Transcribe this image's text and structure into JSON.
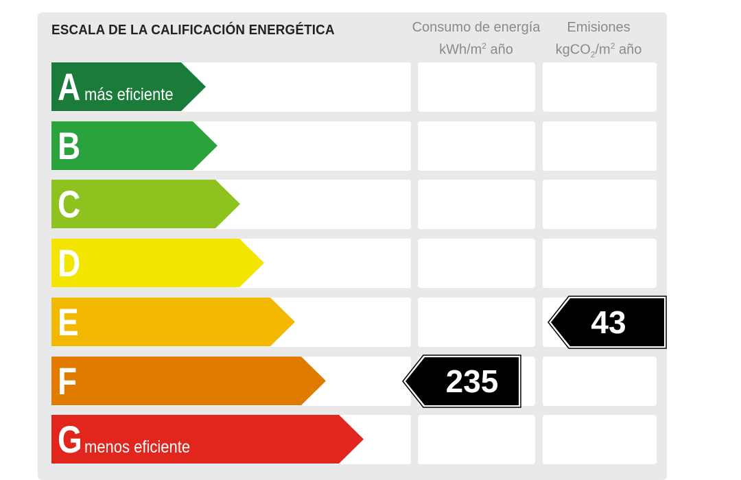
{
  "header": {
    "title": "ESCALA DE LA CALIFICACIÓN ENERGÉTICA",
    "energy_col_line1": "Consumo de energía",
    "energy_col_unit_a": "kWh/m",
    "energy_col_unit_sup": "2",
    "energy_col_unit_b": " año",
    "emissions_col_line1": "Emisiones",
    "emissions_col_unit_a": "kgCO",
    "emissions_col_unit_sub": "2",
    "emissions_col_unit_b": "/m",
    "emissions_col_unit_sup": "2",
    "emissions_col_unit_c": " año"
  },
  "ratings": [
    {
      "letter": "A",
      "caption": "más eficiente",
      "color": "#1b7b3a"
    },
    {
      "letter": "B",
      "caption": "",
      "color": "#2aa33c"
    },
    {
      "letter": "C",
      "caption": "",
      "color": "#8dc21f"
    },
    {
      "letter": "D",
      "caption": "",
      "color": "#f2e500"
    },
    {
      "letter": "E",
      "caption": "",
      "color": "#f2b900"
    },
    {
      "letter": "F",
      "caption": "",
      "color": "#e07b00"
    },
    {
      "letter": "G",
      "caption": "menos eficiente",
      "color": "#e0261d"
    }
  ],
  "energy_consumption": {
    "value": "235",
    "rating": "F",
    "color": "#000000"
  },
  "emissions": {
    "value": "43",
    "rating": "E",
    "color": "#000000"
  }
}
